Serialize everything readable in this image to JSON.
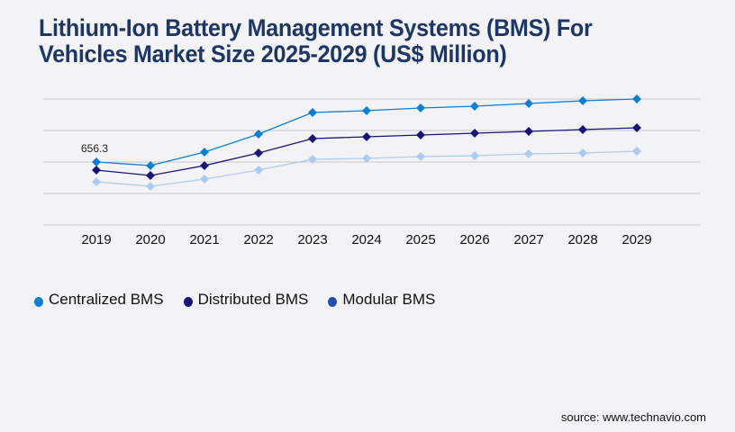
{
  "title_lines": [
    "Lithium-Ion Battery Management Systems (BMS) For",
    "Vehicles Market Size 2025-2029 (US$ Million)"
  ],
  "source": "source: www.technavio.com",
  "chart_data": {
    "type": "line",
    "title": "Lithium-Ion Battery Management Systems (BMS) For Vehicles Market Size 2025-2029 (US$ Million)",
    "xlabel": "",
    "ylabel": "",
    "x": [
      "2019",
      "2020",
      "2021",
      "2022",
      "2023",
      "2024",
      "2025",
      "2026",
      "2027",
      "2028",
      "2029"
    ],
    "ylim": [
      0,
      1312.6
    ],
    "grid": true,
    "y_axis_labels_visible": false,
    "legend_position": "bottom-left",
    "series": [
      {
        "name": "Centralized BMS",
        "color": "#0a7fd4",
        "values": [
          656.3,
          618.8,
          759.4,
          946.9,
          1172.0,
          1190.7,
          1218.9,
          1237.6,
          1265.8,
          1293.9,
          1312.6
        ]
      },
      {
        "name": "Distributed BMS",
        "color": "#1b1478",
        "values": [
          571.9,
          515.7,
          618.8,
          750.1,
          900.1,
          918.9,
          937.6,
          956.4,
          975.1,
          993.9,
          1012.6
        ]
      },
      {
        "name": "Modular BMS",
        "color": "#a9ccf5",
        "legend_color": "#1f4fb3",
        "values": [
          450.0,
          403.2,
          478.2,
          571.9,
          684.4,
          693.8,
          712.6,
          721.9,
          740.7,
          750.1,
          768.8
        ]
      }
    ],
    "annotations": [
      {
        "series": "Centralized BMS",
        "x": "2019",
        "label": "656.3"
      }
    ]
  }
}
